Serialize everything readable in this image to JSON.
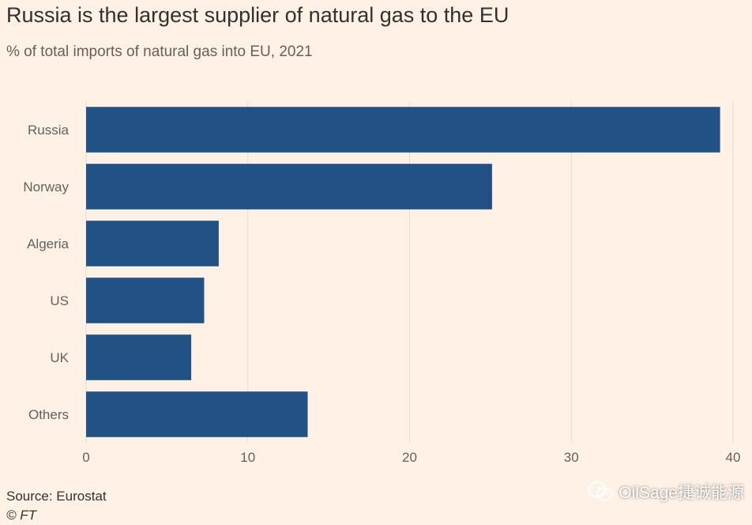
{
  "chart_data": {
    "type": "bar",
    "orientation": "horizontal",
    "title": "Russia is the largest supplier of natural gas to the EU",
    "subtitle": "% of total imports of natural gas into EU, 2021",
    "categories": [
      "Russia",
      "Norway",
      "Algeria",
      "US",
      "UK",
      "Others"
    ],
    "values": [
      39.2,
      25.1,
      8.2,
      7.3,
      6.5,
      13.7
    ],
    "xlim": [
      0,
      40
    ],
    "xticks": [
      0,
      10,
      20,
      30,
      40
    ],
    "grid": true,
    "xlabel": "",
    "ylabel": ""
  },
  "colors": {
    "bar": "#215185",
    "grid": "#e5dcd3",
    "axis_text": "#66605c",
    "background": "#fff1e5"
  },
  "footer": {
    "source": "Source: Eurostat",
    "copyright": "© FT"
  },
  "watermark": {
    "text": "OilSage捷诚能源",
    "icon": "wechat-icon"
  }
}
